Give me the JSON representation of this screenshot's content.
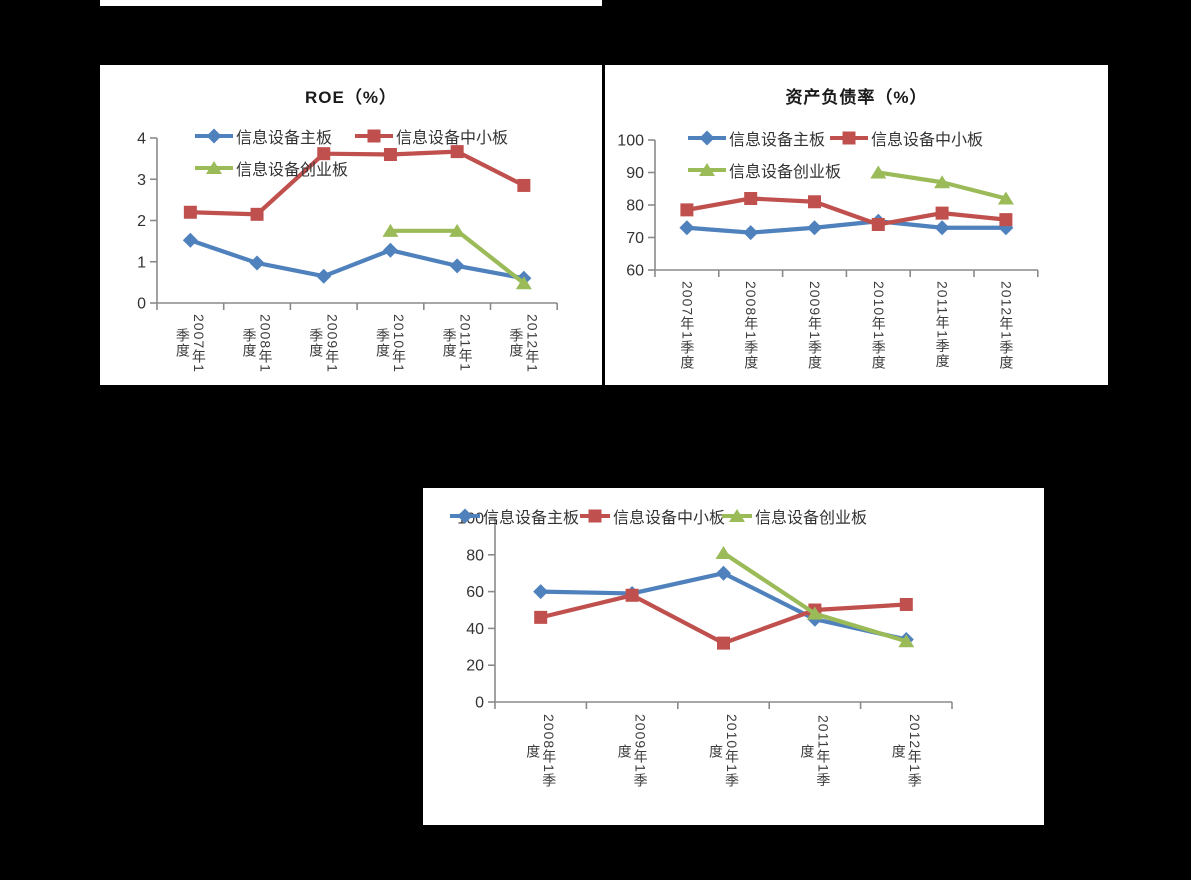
{
  "page": {
    "background_color": "#000000",
    "panel_background": "#ffffff"
  },
  "colors": {
    "axis": "#8a8a8a",
    "tick_label": "#333333",
    "series_blue": "#4f81bd",
    "series_red": "#c0504d",
    "series_green": "#9bbb59"
  },
  "chart_data": [
    {
      "type": "line",
      "title": "ROE（%）",
      "categories": [
        "2007年1季度",
        "2008年1季度",
        "2009年1季度",
        "2010年1季度",
        "2011年1季度",
        "2012年1季度"
      ],
      "series": [
        {
          "name": "信息设备主板",
          "color": "#4f81bd",
          "marker": "diamond",
          "values": [
            1.52,
            0.97,
            0.65,
            1.28,
            0.9,
            0.6
          ]
        },
        {
          "name": "信息设备中小板",
          "color": "#c0504d",
          "marker": "square",
          "values": [
            2.2,
            2.15,
            3.62,
            3.6,
            3.67,
            2.85
          ]
        },
        {
          "name": "信息设备创业板",
          "color": "#9bbb59",
          "marker": "triangle",
          "values": [
            null,
            null,
            null,
            1.75,
            1.75,
            0.48
          ]
        }
      ],
      "ylim": [
        0,
        4
      ],
      "yticks": [
        0,
        1,
        2,
        3,
        4
      ],
      "grid": false,
      "legend_position": "top-left, two rows"
    },
    {
      "type": "line",
      "title": "资产负债率（%）",
      "categories": [
        "2007年1季度",
        "2008年1季度",
        "2009年1季度",
        "2010年1季度",
        "2011年1季度",
        "2012年1季度"
      ],
      "series": [
        {
          "name": "信息设备主板",
          "color": "#4f81bd",
          "marker": "diamond",
          "values": [
            73,
            71.5,
            73,
            75,
            73,
            73
          ]
        },
        {
          "name": "信息设备中小板",
          "color": "#c0504d",
          "marker": "square",
          "values": [
            78.5,
            82,
            81,
            74,
            77.5,
            75.5
          ]
        },
        {
          "name": "信息设备创业板",
          "color": "#9bbb59",
          "marker": "triangle",
          "values": [
            null,
            null,
            null,
            90,
            87,
            82
          ]
        }
      ],
      "ylim": [
        60,
        100
      ],
      "yticks": [
        60,
        70,
        80,
        90,
        100
      ],
      "grid": false,
      "legend_position": "top-left, two rows"
    },
    {
      "type": "line",
      "title": "",
      "categories": [
        "2008年1季度",
        "2009年1季度",
        "2010年1季度",
        "2011年1季度",
        "2012年1季度"
      ],
      "series": [
        {
          "name": "信息设备主板",
          "color": "#4f81bd",
          "marker": "diamond",
          "values": [
            60,
            59,
            70,
            45,
            34
          ]
        },
        {
          "name": "信息设备中小板",
          "color": "#c0504d",
          "marker": "square",
          "values": [
            46,
            58,
            32,
            50,
            53
          ]
        },
        {
          "name": "信息设备创业板",
          "color": "#9bbb59",
          "marker": "triangle",
          "values": [
            null,
            null,
            81,
            48,
            33
          ]
        }
      ],
      "ylim": [
        0,
        100
      ],
      "yticks": [
        0,
        20,
        40,
        60,
        80,
        100
      ],
      "grid": false,
      "legend_position": "top, single row"
    }
  ]
}
